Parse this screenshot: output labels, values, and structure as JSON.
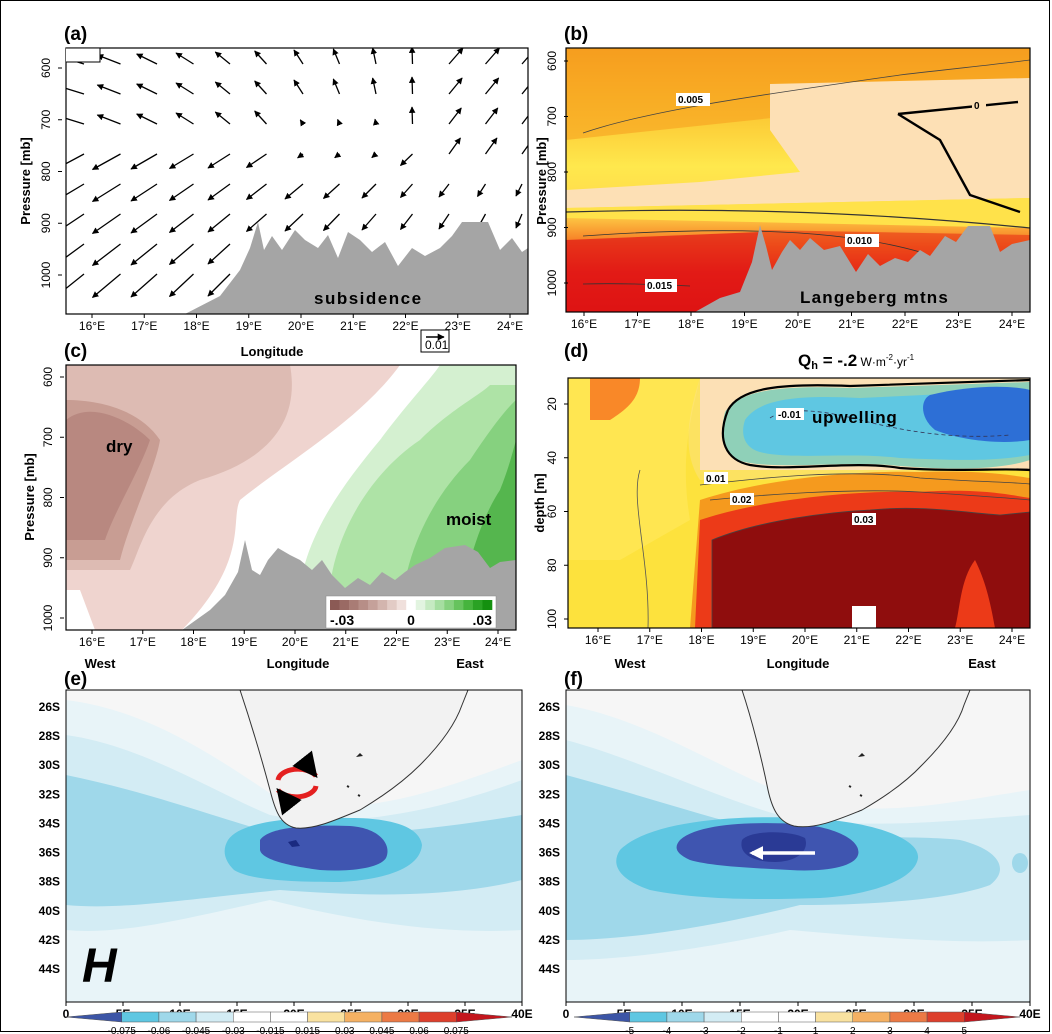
{
  "chart_data": [
    {
      "panel": "a",
      "label": "(a)",
      "type": "vector",
      "xlabel": "Longitude",
      "ylabel": "Pressure [mb]",
      "x_ticks": [
        "16°E",
        "17°E",
        "18°E",
        "19°E",
        "20°E",
        "21°E",
        "22°E",
        "23°E",
        "24°E"
      ],
      "y_ticks": [
        "600",
        "700",
        "800",
        "900",
        "1000"
      ],
      "annotation": "subsidence",
      "reference_vector": "0.01"
    },
    {
      "panel": "b",
      "label": "(b)",
      "type": "contour",
      "ylabel": "Pressure [mb]",
      "x_ticks": [
        "16°E",
        "17°E",
        "18°E",
        "19°E",
        "20°E",
        "21°E",
        "22°E",
        "23°E",
        "24°E"
      ],
      "y_ticks": [
        "600",
        "700",
        "800",
        "900",
        "1000"
      ],
      "contour_labels": [
        "0.005",
        "0",
        "0.010",
        "0.015"
      ],
      "annotation": "Langeberg mtns"
    },
    {
      "panel": "c",
      "label": "(c)",
      "type": "contour",
      "xlabel": "Longitude",
      "ylabel": "Pressure [mb]",
      "x_ticks": [
        "16°E",
        "17°E",
        "18°E",
        "19°E",
        "20°E",
        "21°E",
        "22°E",
        "23°E",
        "24°E"
      ],
      "x_side_labels": [
        "West",
        "East"
      ],
      "y_ticks": [
        "600",
        "700",
        "800",
        "900",
        "1000"
      ],
      "annotations": [
        "dry",
        "moist"
      ],
      "colorbar": {
        "min_label": "-.03",
        "mid_label": "0",
        "max_label": ".03",
        "colors": [
          "#8b5a55",
          "#9a6a64",
          "#a97c75",
          "#b78e87",
          "#c5a19a",
          "#d3b5ae",
          "#e2cbc5",
          "#f0e0dc",
          "#ffffff",
          "#e2f4e0",
          "#c6eac2",
          "#a6dea1",
          "#86d17f",
          "#66c35d",
          "#46b43d",
          "#2aa224",
          "#14900f"
        ]
      }
    },
    {
      "panel": "d",
      "label": "(d)",
      "type": "contour",
      "title": "Qh = -.2 W·m-2·yr-1",
      "title_main": "Q",
      "title_sub": "h",
      "title_rest": " = -.2",
      "title_unit": " W·m",
      "title_exp1": "-2",
      "title_mid": "·yr",
      "title_exp2": "-1",
      "xlabel": "Longitude",
      "ylabel": "depth [m]",
      "x_ticks": [
        "16°E",
        "17°E",
        "18°E",
        "19°E",
        "20°E",
        "21°E",
        "22°E",
        "23°E",
        "24°E"
      ],
      "x_side_labels": [
        "West",
        "East"
      ],
      "y_ticks": [
        "20",
        "40",
        "60",
        "80",
        "100"
      ],
      "contour_labels": [
        "-0.01",
        "0.01",
        "0.02",
        "0.03"
      ],
      "annotation": "upwelling"
    },
    {
      "panel": "e",
      "label": "(e)",
      "type": "map",
      "x_ticks": [
        "0",
        "5E",
        "10E",
        "15E",
        "20E",
        "25E",
        "30E",
        "35E",
        "40E"
      ],
      "y_ticks": [
        "26S",
        "28S",
        "30S",
        "32S",
        "34S",
        "36S",
        "38S",
        "40S",
        "42S",
        "44S"
      ],
      "annotation": "H",
      "colorbar": {
        "labels": [
          "-0.075",
          "-0.06",
          "-0.045",
          "-0.03",
          "-0.015",
          "0.015",
          "0.03",
          "0.045",
          "0.06",
          "0.075"
        ],
        "colors": [
          "#3c55a6",
          "#5fc7e2",
          "#9fd8ea",
          "#d3ecf4",
          "#ffffff",
          "#ffffff",
          "#f9e2a0",
          "#f5b163",
          "#ec7a45",
          "#dd3f2c",
          "#c3161d"
        ]
      }
    },
    {
      "panel": "f",
      "label": "(f)",
      "type": "map",
      "x_ticks": [
        "0",
        "5E",
        "10E",
        "15E",
        "20E",
        "25E",
        "30E",
        "35E",
        "40E"
      ],
      "y_ticks": [
        "26S",
        "28S",
        "30S",
        "32S",
        "34S",
        "36S",
        "38S",
        "40S",
        "42S",
        "44S"
      ],
      "colorbar": {
        "labels": [
          "-5",
          "-4",
          "-3",
          "-2",
          "-1",
          "1",
          "2",
          "3",
          "4",
          "5"
        ],
        "colors": [
          "#3c55a6",
          "#5fc7e2",
          "#9fd8ea",
          "#d3ecf4",
          "#ffffff",
          "#ffffff",
          "#f9e2a0",
          "#f5b163",
          "#ec7a45",
          "#dd3f2c",
          "#c3161d"
        ]
      }
    }
  ],
  "colors": {
    "terrain": "#a5a5a5",
    "upwelling_blue": "#2d6fd6",
    "warm_red": "#e01515",
    "map_dark_blue": "#3f55b0"
  }
}
